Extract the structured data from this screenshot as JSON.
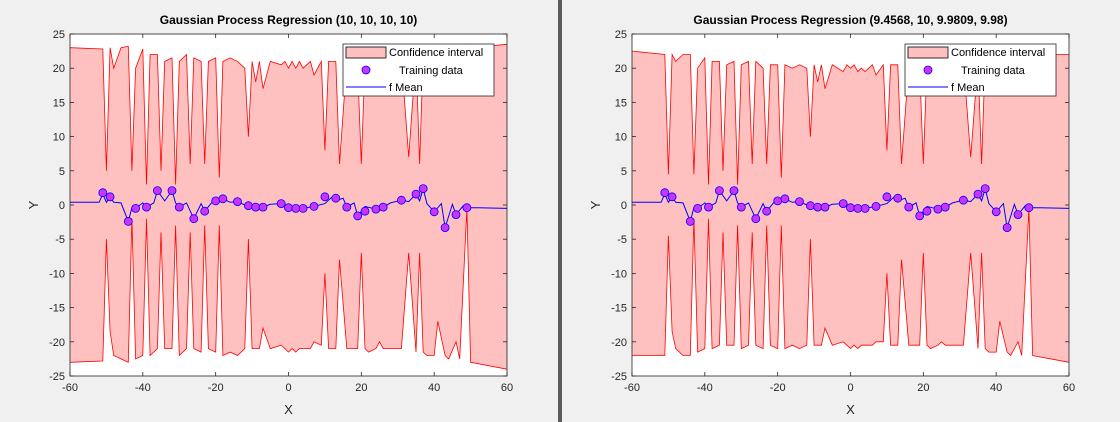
{
  "chart_data": [
    {
      "type": "line",
      "title": "Gaussian Process Regression (10, 10, 10, 10)",
      "xlabel": "X",
      "ylabel": "Y",
      "xlim": [
        -60,
        60
      ],
      "ylim": [
        -25,
        25
      ],
      "xticks": [
        -60,
        -40,
        -20,
        0,
        20,
        40,
        60
      ],
      "yticks": [
        -25,
        -20,
        -15,
        -10,
        -5,
        0,
        5,
        10,
        15,
        20,
        25
      ],
      "legend": {
        "placement": "top-right",
        "entries": [
          "Confidence interval",
          "Training data",
          "f Mean"
        ]
      },
      "colors": {
        "band_fill": "#ffc0c0",
        "band_edge": "#ff0000",
        "mean": "#0000ff",
        "points": "#cc33ff",
        "point_edge": "#0000ff"
      },
      "training_data": {
        "x": [
          -51,
          -49,
          -44,
          -42,
          -39,
          -36,
          -32,
          -30,
          -26,
          -23,
          -20,
          -18,
          -14,
          -11,
          -9,
          -7,
          -2,
          0,
          2,
          4,
          7,
          10,
          13,
          16,
          19,
          21,
          24,
          26,
          31,
          35,
          37,
          40,
          43,
          46,
          49
        ],
        "y": [
          1.8,
          1.2,
          -2.4,
          -0.5,
          -0.3,
          2.1,
          2.1,
          -0.3,
          -2.0,
          -0.9,
          0.6,
          0.9,
          0.5,
          -0.1,
          -0.3,
          -0.3,
          0.2,
          -0.4,
          -0.5,
          -0.5,
          -0.2,
          1.2,
          1.0,
          -0.3,
          -1.6,
          -0.9,
          -0.6,
          -0.3,
          0.7,
          1.6,
          2.4,
          -1.0,
          -3.3,
          -1.4,
          -0.4
        ]
      },
      "confidence_interval": {
        "x": [
          -60,
          -51,
          -50,
          -49,
          -48,
          -46,
          -44,
          -43,
          -42,
          -40,
          -39,
          -38,
          -36,
          -35,
          -34,
          -32,
          -31,
          -30,
          -28,
          -27,
          -26,
          -24,
          -23,
          -22,
          -20,
          -19,
          -18,
          -16,
          -14,
          -12,
          -11,
          -10,
          -9,
          -8,
          -7,
          -5,
          -2,
          -1,
          0,
          1,
          2,
          3,
          4,
          6,
          7,
          9,
          10,
          11,
          13,
          14,
          16,
          17,
          19,
          20,
          21,
          22,
          24,
          25,
          26,
          28,
          31,
          33,
          35,
          36,
          37,
          38,
          40,
          41,
          43,
          44,
          46,
          47,
          49,
          50,
          60
        ],
        "upper": [
          23.0,
          22.8,
          5.0,
          23.0,
          20.0,
          23.0,
          23.2,
          5.0,
          20.0,
          22.8,
          3.0,
          22.0,
          22.0,
          5.0,
          21.0,
          21.5,
          3.0,
          21.0,
          22.0,
          6.0,
          21.5,
          21.0,
          6.0,
          21.0,
          21.5,
          4.0,
          21.0,
          21.5,
          21.0,
          20.0,
          10.0,
          21.0,
          18.0,
          21.0,
          17.0,
          21.0,
          20.5,
          21.0,
          20.0,
          21.0,
          20.0,
          21.0,
          20.0,
          21.0,
          19.0,
          21.0,
          8.0,
          21.0,
          21.0,
          6.0,
          21.0,
          21.0,
          20.0,
          6.0,
          21.0,
          21.0,
          21.0,
          20.0,
          21.0,
          21.0,
          21.5,
          7.0,
          22.0,
          6.0,
          22.0,
          21.0,
          22.0,
          17.0,
          22.5,
          23.0,
          20.0,
          23.0,
          23.5,
          23.0,
          23.5
        ],
        "lower": [
          -23.0,
          -22.8,
          -5.0,
          -18.5,
          -22.0,
          -22.5,
          -23.0,
          -2.0,
          -22.5,
          -22.0,
          -2.0,
          -22.0,
          -21.0,
          -4.0,
          -21.0,
          -21.0,
          -3.0,
          -22.0,
          -21.0,
          -4.0,
          -21.0,
          -21.5,
          -3.0,
          -21.0,
          -21.5,
          -3.0,
          -22.0,
          -21.5,
          -22.0,
          -21.0,
          -5.0,
          -21.0,
          -21.0,
          -21.0,
          -18.0,
          -21.0,
          -20.5,
          -21.0,
          -21.5,
          -21.0,
          -21.5,
          -21.0,
          -21.0,
          -21.0,
          -20.0,
          -20.5,
          -10.0,
          -21.0,
          -21.0,
          -8.0,
          -21.0,
          -21.0,
          -21.0,
          -7.0,
          -21.0,
          -21.5,
          -21.0,
          -20.0,
          -21.0,
          -21.0,
          -21.0,
          -7.0,
          -21.5,
          -7.0,
          -21.5,
          -22.0,
          -22.0,
          -17.0,
          -22.0,
          -22.5,
          -20.0,
          -22.5,
          -0.5,
          -23.0,
          -24.0
        ]
      },
      "mean": {
        "x": [
          -60,
          -52,
          -51,
          -50,
          -49,
          -48,
          -46,
          -44,
          -43,
          -42,
          -40,
          -39,
          -37,
          -36,
          -34,
          -32,
          -31,
          -30,
          -28,
          -26,
          -24,
          -23,
          -21,
          -20,
          -18,
          -16,
          -14,
          -12,
          -11,
          -9,
          -7,
          -5,
          -2,
          0,
          2,
          4,
          7,
          10,
          12,
          13,
          15,
          16,
          18,
          19,
          21,
          24,
          26,
          28,
          31,
          33,
          35,
          36,
          37,
          38,
          40,
          42,
          43,
          45,
          46,
          48,
          49,
          52,
          60
        ],
        "y": [
          0.4,
          0.4,
          1.6,
          0.4,
          1.2,
          0.4,
          0.3,
          -2.4,
          -0.4,
          -0.5,
          0.3,
          -0.3,
          0.3,
          2.1,
          0.6,
          2.1,
          0.3,
          -0.3,
          0.3,
          -2.0,
          0.2,
          -0.9,
          0.4,
          0.6,
          0.9,
          0.4,
          0.5,
          0.0,
          -0.1,
          -0.3,
          -0.3,
          0.1,
          0.2,
          -0.4,
          -0.5,
          -0.5,
          -0.2,
          0.2,
          1.2,
          0.6,
          1.0,
          -0.3,
          0.3,
          -1.6,
          -0.2,
          -0.6,
          -0.3,
          0.3,
          0.7,
          0.5,
          1.6,
          0.6,
          2.4,
          0.2,
          -1.0,
          0.2,
          -3.3,
          0.1,
          -1.4,
          -0.1,
          -0.4,
          -0.4,
          -0.5
        ]
      }
    },
    {
      "type": "line",
      "title": "Gaussian Process Regression (9.4568, 10, 9.9809, 9.98)",
      "xlabel": "X",
      "ylabel": "Y",
      "xlim": [
        -60,
        60
      ],
      "ylim": [
        -25,
        25
      ],
      "xticks": [
        -60,
        -40,
        -20,
        0,
        20,
        40,
        60
      ],
      "yticks": [
        -25,
        -20,
        -15,
        -10,
        -5,
        0,
        5,
        10,
        15,
        20,
        25
      ],
      "legend": {
        "placement": "top-right",
        "entries": [
          "Confidence interval",
          "Training data",
          "f Mean"
        ]
      },
      "colors": {
        "band_fill": "#ffc0c0",
        "band_edge": "#ff0000",
        "mean": "#0000ff",
        "points": "#cc33ff",
        "point_edge": "#0000ff"
      },
      "training_data": {
        "x": [
          -51,
          -49,
          -44,
          -42,
          -39,
          -36,
          -32,
          -30,
          -26,
          -23,
          -20,
          -18,
          -14,
          -11,
          -9,
          -7,
          -2,
          0,
          2,
          4,
          7,
          10,
          13,
          16,
          19,
          21,
          24,
          26,
          31,
          35,
          37,
          40,
          43,
          46,
          49
        ],
        "y": [
          1.8,
          1.2,
          -2.4,
          -0.5,
          -0.3,
          2.1,
          2.1,
          -0.3,
          -2.0,
          -0.9,
          0.6,
          0.9,
          0.5,
          -0.1,
          -0.3,
          -0.3,
          0.2,
          -0.4,
          -0.5,
          -0.5,
          -0.2,
          1.2,
          1.0,
          -0.3,
          -1.6,
          -0.9,
          -0.6,
          -0.3,
          0.7,
          1.6,
          2.4,
          -1.0,
          -3.3,
          -1.4,
          -0.4
        ]
      },
      "confidence_interval": {
        "x": [
          -60,
          -51,
          -50,
          -49,
          -48,
          -46,
          -44,
          -43,
          -42,
          -40,
          -39,
          -38,
          -36,
          -35,
          -34,
          -32,
          -31,
          -30,
          -28,
          -27,
          -26,
          -24,
          -23,
          -22,
          -20,
          -19,
          -18,
          -16,
          -14,
          -12,
          -11,
          -10,
          -9,
          -8,
          -7,
          -5,
          -2,
          -1,
          0,
          1,
          2,
          3,
          4,
          6,
          7,
          9,
          10,
          11,
          13,
          14,
          16,
          17,
          19,
          20,
          21,
          22,
          24,
          25,
          26,
          28,
          31,
          33,
          35,
          36,
          37,
          38,
          40,
          41,
          43,
          44,
          46,
          47,
          49,
          50,
          60
        ],
        "upper": [
          22.5,
          22.0,
          4.5,
          22.0,
          21.0,
          22.0,
          22.0,
          4.5,
          20.0,
          21.5,
          3.0,
          21.0,
          21.0,
          5.0,
          20.5,
          21.0,
          3.0,
          20.5,
          21.0,
          6.0,
          21.0,
          20.0,
          6.0,
          20.5,
          20.5,
          4.0,
          20.5,
          20.0,
          20.5,
          20.0,
          10.0,
          20.5,
          18.0,
          20.5,
          17.0,
          20.5,
          19.5,
          20.5,
          20.0,
          20.5,
          19.5,
          20.0,
          19.5,
          20.5,
          19.0,
          20.5,
          8.0,
          20.5,
          20.5,
          6.0,
          20.5,
          20.5,
          20.0,
          6.0,
          20.5,
          20.5,
          20.5,
          20.0,
          20.5,
          20.5,
          21.0,
          7.0,
          21.0,
          6.0,
          21.5,
          20.5,
          21.5,
          17.0,
          21.5,
          22.0,
          20.0,
          22.0,
          22.0,
          22.0,
          22.0
        ],
        "lower": [
          -22.0,
          -22.0,
          -4.5,
          -18.5,
          -21.0,
          -22.0,
          -22.0,
          -2.0,
          -21.5,
          -21.0,
          -2.0,
          -21.0,
          -20.5,
          -4.0,
          -20.5,
          -20.5,
          -3.0,
          -21.0,
          -20.5,
          -4.0,
          -20.5,
          -21.0,
          -3.0,
          -20.5,
          -21.0,
          -3.0,
          -21.0,
          -20.5,
          -21.0,
          -20.5,
          -5.0,
          -20.5,
          -20.5,
          -20.5,
          -18.0,
          -20.5,
          -20.0,
          -20.5,
          -21.0,
          -20.5,
          -21.0,
          -20.5,
          -20.5,
          -20.5,
          -20.0,
          -20.0,
          -10.0,
          -20.5,
          -20.5,
          -8.0,
          -20.5,
          -20.5,
          -20.5,
          -7.0,
          -20.5,
          -21.0,
          -20.5,
          -20.0,
          -20.5,
          -20.5,
          -20.5,
          -7.0,
          -21.0,
          -7.0,
          -21.0,
          -21.5,
          -21.5,
          -17.0,
          -21.5,
          -22.0,
          -20.0,
          -22.0,
          -0.5,
          -22.0,
          -23.0
        ]
      },
      "mean": {
        "x": [
          -60,
          -52,
          -51,
          -50,
          -49,
          -48,
          -46,
          -44,
          -43,
          -42,
          -40,
          -39,
          -37,
          -36,
          -34,
          -32,
          -31,
          -30,
          -28,
          -26,
          -24,
          -23,
          -21,
          -20,
          -18,
          -16,
          -14,
          -12,
          -11,
          -9,
          -7,
          -5,
          -2,
          0,
          2,
          4,
          7,
          10,
          12,
          13,
          15,
          16,
          18,
          19,
          21,
          24,
          26,
          28,
          31,
          33,
          35,
          36,
          37,
          38,
          40,
          42,
          43,
          45,
          46,
          48,
          49,
          52,
          60
        ],
        "y": [
          0.4,
          0.4,
          1.6,
          0.4,
          1.2,
          0.4,
          0.3,
          -2.4,
          -0.4,
          -0.5,
          0.3,
          -0.3,
          0.3,
          2.1,
          0.6,
          2.1,
          0.3,
          -0.3,
          0.3,
          -2.0,
          0.2,
          -0.9,
          0.4,
          0.6,
          0.9,
          0.4,
          0.5,
          0.0,
          -0.1,
          -0.3,
          -0.3,
          0.1,
          0.2,
          -0.4,
          -0.5,
          -0.5,
          -0.2,
          0.2,
          1.2,
          0.6,
          1.0,
          -0.3,
          0.3,
          -1.6,
          -0.2,
          -0.6,
          -0.3,
          0.3,
          0.7,
          0.5,
          1.6,
          0.6,
          2.4,
          0.2,
          -1.0,
          0.2,
          -3.3,
          0.1,
          -1.4,
          -0.1,
          -0.4,
          -0.4,
          -0.5
        ]
      }
    }
  ]
}
